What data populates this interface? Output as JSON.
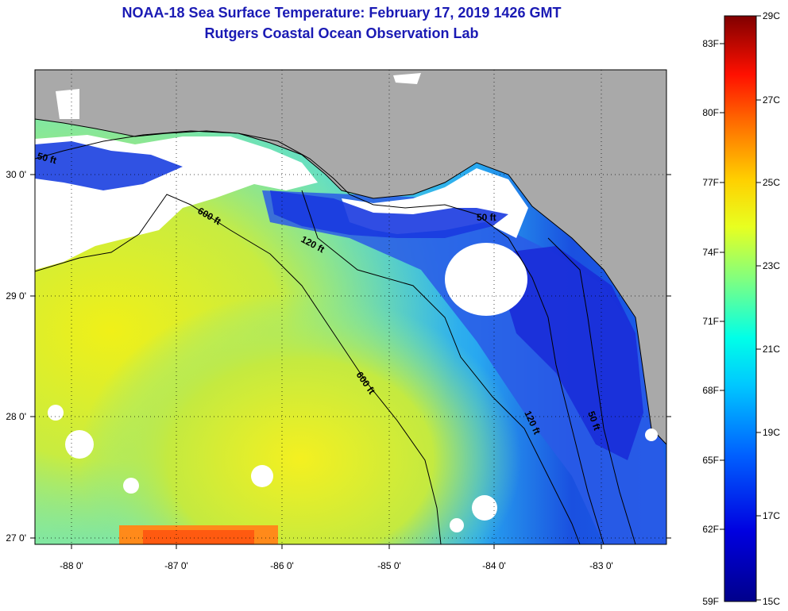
{
  "header": {
    "title": "NOAA-18 Sea Surface Temperature:  February 17, 2019 1426 GMT",
    "subtitle": "Rutgers Coastal Ocean Observation Lab"
  },
  "map": {
    "x_ticks": [
      "-88 0'",
      "-87 0'",
      "-86 0'",
      "-85 0'",
      "-84 0'",
      "-83 0'"
    ],
    "y_ticks": [
      "30 0'",
      "29 0'",
      "28 0'",
      "27 0'"
    ],
    "contour_labels": [
      "50 ft",
      "600 ft",
      "120 ft",
      "600 ft",
      "120 ft",
      "50 ft",
      "50 ft"
    ],
    "colors": {
      "land": "#a9a9a9",
      "cloud": "#ffffff",
      "contour": "#000000"
    }
  },
  "colorbar": {
    "fahrenheit": [
      "83F",
      "80F",
      "77F",
      "74F",
      "71F",
      "68F",
      "65F",
      "62F",
      "59F"
    ],
    "celsius": [
      "29C",
      "27C",
      "25C",
      "23C",
      "21C",
      "19C",
      "17C",
      "15C"
    ],
    "colors": [
      "#00008b",
      "#0000ff",
      "#0080ff",
      "#00ffff",
      "#80ff80",
      "#ffff00",
      "#ff8000",
      "#ff0000",
      "#800000"
    ]
  }
}
